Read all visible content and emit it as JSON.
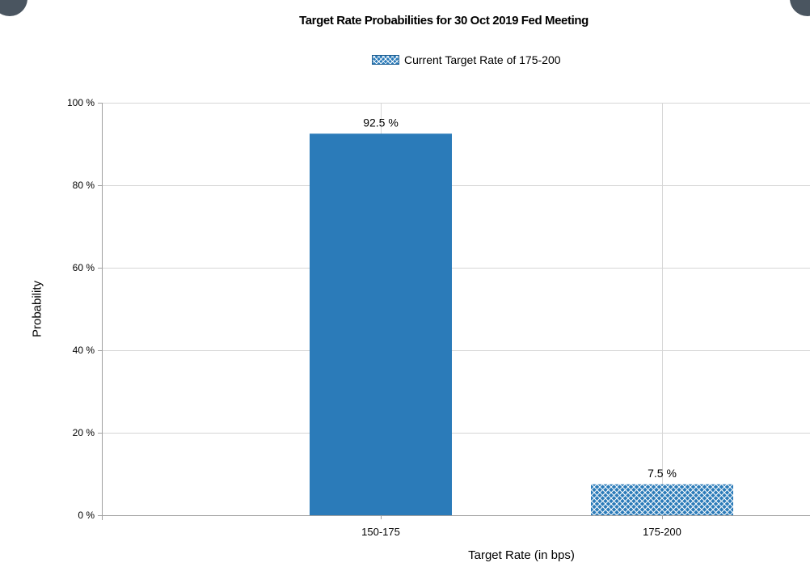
{
  "chart_data": {
    "type": "bar",
    "title": "Target Rate Probabilities for 30 Oct 2019 Fed Meeting",
    "xlabel": "Target Rate (in bps)",
    "ylabel": "Probability",
    "categories": [
      "150-175",
      "175-200"
    ],
    "values": [
      92.5,
      7.5
    ],
    "value_labels": [
      "92.5 %",
      "7.5 %"
    ],
    "ylim": [
      0,
      100
    ],
    "y_ticks": [
      0,
      20,
      40,
      60,
      80,
      100
    ],
    "y_tick_labels": [
      "0 %",
      "20 %",
      "40 %",
      "60 %",
      "80 %",
      "100 %"
    ],
    "grid": true,
    "legend": {
      "placement": "top-center",
      "entries": [
        {
          "label": "Current Target Rate of 175-200",
          "style": "crosshatch"
        }
      ]
    },
    "bar_styles": [
      "solid",
      "crosshatch"
    ],
    "bar_color": "#2b7bb9",
    "hatch_color": "#ffffff",
    "grid_color": "#d6d6d6",
    "axis_color": "#a0a0a0"
  }
}
